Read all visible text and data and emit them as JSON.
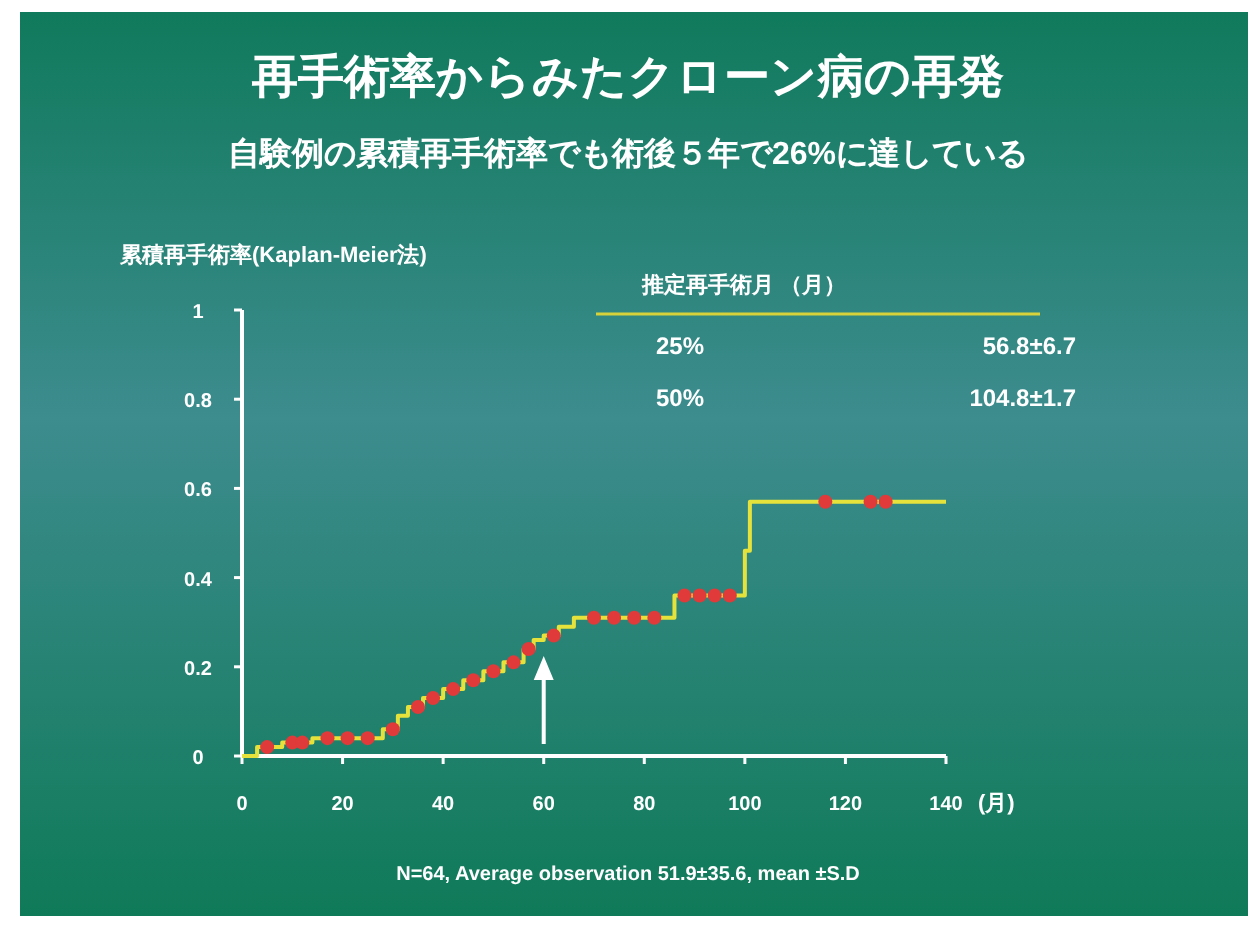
{
  "chart_data": {
    "type": "step",
    "title": "再手術率からみたクローン病の再発",
    "subtitle": "自験例の累積再手術率でも術後５年で26%に達している",
    "ylabel": "累積再手術率(Kaplan-Meier法)",
    "xlabel": "(月)",
    "xlim": [
      0,
      140
    ],
    "ylim": [
      0,
      1
    ],
    "xticks": [
      0,
      20,
      40,
      60,
      80,
      100,
      120,
      140
    ],
    "yticks": [
      0,
      0.2,
      0.4,
      0.6,
      0.8,
      1
    ],
    "grid": false,
    "annotations": [
      "推定再手術月 （月）",
      "25%",
      "56.8±6.7",
      "50%",
      "104.8±1.7",
      "N=64, Average observation 51.9±35.6, mean ±S.D"
    ],
    "series": [
      {
        "color": "#e6e23c",
        "marker": "none",
        "x": [
          0,
          3,
          8,
          14,
          28,
          31,
          33,
          36,
          40,
          44,
          48,
          52,
          56,
          58,
          60,
          63,
          66,
          86,
          100,
          101,
          140
        ],
        "values": [
          0,
          0.02,
          0.03,
          0.04,
          0.06,
          0.09,
          0.11,
          0.13,
          0.15,
          0.17,
          0.19,
          0.21,
          0.24,
          0.26,
          0.27,
          0.29,
          0.31,
          0.36,
          0.46,
          0.57,
          0.57
        ]
      },
      {
        "type": "scatter",
        "color": "#e03a3a",
        "marker": "circle",
        "x": [
          5,
          10,
          12,
          17,
          21,
          25,
          30,
          35,
          38,
          42,
          46,
          50,
          54,
          57,
          62,
          70,
          74,
          78,
          82,
          88,
          91,
          94,
          97,
          116,
          125,
          128
        ],
        "values": [
          0.02,
          0.03,
          0.03,
          0.04,
          0.04,
          0.04,
          0.06,
          0.11,
          0.13,
          0.15,
          0.17,
          0.19,
          0.21,
          0.24,
          0.27,
          0.31,
          0.31,
          0.31,
          0.31,
          0.36,
          0.36,
          0.36,
          0.36,
          0.57,
          0.57,
          0.57
        ]
      }
    ]
  }
}
